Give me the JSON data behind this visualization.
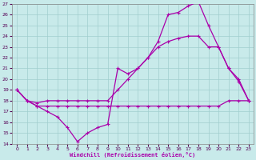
{
  "xlabel": "Windchill (Refroidissement éolien,°C)",
  "xlim": [
    -0.5,
    23.5
  ],
  "ylim": [
    14,
    27
  ],
  "xticks": [
    0,
    1,
    2,
    3,
    4,
    5,
    6,
    7,
    8,
    9,
    10,
    11,
    12,
    13,
    14,
    15,
    16,
    17,
    18,
    19,
    20,
    21,
    22,
    23
  ],
  "yticks": [
    14,
    15,
    16,
    17,
    18,
    19,
    20,
    21,
    22,
    23,
    24,
    25,
    26,
    27
  ],
  "bg_color": "#c8eaea",
  "grid_color": "#a0cece",
  "line_color": "#aa00aa",
  "line1_x": [
    0,
    1,
    2,
    3,
    4,
    5,
    6,
    7,
    8,
    9,
    10,
    11,
    12,
    13,
    14,
    15,
    16,
    17,
    18,
    19,
    20,
    21,
    22,
    23
  ],
  "line1_y": [
    19,
    18,
    17.5,
    17.5,
    17.5,
    17.5,
    17.5,
    17.5,
    17.5,
    17.5,
    17.5,
    17.5,
    17.5,
    17.5,
    17.5,
    17.5,
    17.5,
    17.5,
    17.5,
    17.5,
    17.5,
    18,
    18,
    18
  ],
  "line2_x": [
    0,
    1,
    2,
    3,
    4,
    5,
    6,
    7,
    8,
    9,
    10,
    11,
    12,
    13,
    14,
    15,
    16,
    17,
    18,
    19,
    20,
    21,
    22,
    23
  ],
  "line2_y": [
    19,
    18,
    17.8,
    18,
    18,
    18,
    18,
    18,
    18,
    18,
    19,
    20,
    21,
    22,
    23,
    23.5,
    23.8,
    24,
    24,
    23,
    23,
    21,
    20,
    18
  ],
  "line3_x": [
    0,
    1,
    2,
    3,
    4,
    5,
    6,
    7,
    8,
    9,
    10,
    11,
    12,
    13,
    14,
    15,
    16,
    17,
    18,
    19,
    20,
    21,
    22,
    23
  ],
  "line3_y": [
    19,
    18,
    17.5,
    17,
    16.5,
    15.5,
    14.2,
    15,
    15.5,
    15.8,
    21,
    20.5,
    21,
    22,
    23.5,
    26,
    26.2,
    26.8,
    27.2,
    25,
    23,
    21,
    19.8,
    18
  ]
}
